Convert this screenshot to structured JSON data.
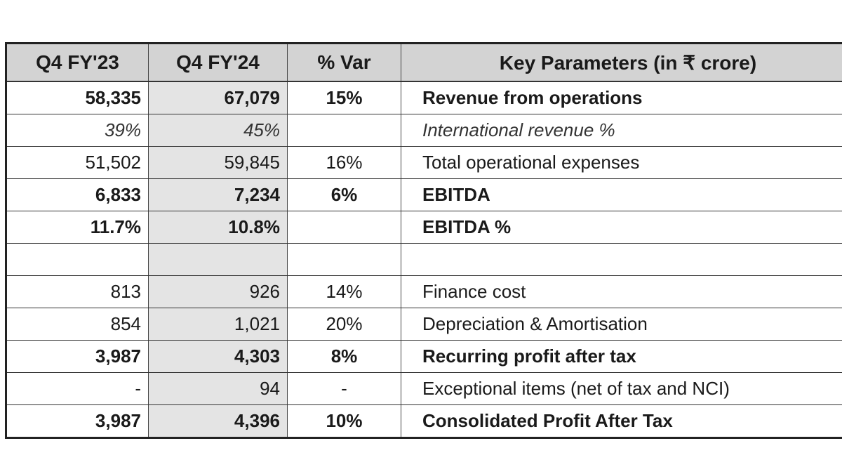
{
  "headers": [
    "Q4 FY'23",
    "Q4 FY'24",
    "% Var",
    "Key Parameters (in ₹ crore)"
  ],
  "rows": [
    {
      "q23": "58,335",
      "q24": "67,079",
      "var": "15%",
      "param": "Revenue from operations",
      "style": "bold"
    },
    {
      "q23": "39%",
      "q24": "45%",
      "var": "",
      "param": "International revenue %",
      "style": "italic"
    },
    {
      "q23": "51,502",
      "q24": "59,845",
      "var": "16%",
      "param": "Total operational expenses",
      "style": "normal"
    },
    {
      "q23": "6,833",
      "q24": "7,234",
      "var": "6%",
      "param": "EBITDA",
      "style": "bold"
    },
    {
      "q23": "11.7%",
      "q24": "10.8%",
      "var": "",
      "param": "EBITDA %",
      "style": "bold"
    },
    {
      "q23": "",
      "q24": "",
      "var": "",
      "param": "",
      "style": "normal"
    },
    {
      "q23": "813",
      "q24": "926",
      "var": "14%",
      "param": "Finance cost",
      "style": "normal"
    },
    {
      "q23": "854",
      "q24": "1,021",
      "var": "20%",
      "param": "Depreciation & Amortisation",
      "style": "normal"
    },
    {
      "q23": "3,987",
      "q24": "4,303",
      "var": "8%",
      "param": "Recurring profit after tax",
      "style": "bold"
    },
    {
      "q23": "-",
      "q24": "94",
      "var": "-",
      "param": "Exceptional items (net of tax and NCI)",
      "style": "normal"
    },
    {
      "q23": "3,987",
      "q24": "4,396",
      "var": "10%",
      "param": "Consolidated Profit After Tax",
      "style": "bold"
    }
  ],
  "colors": {
    "header_bg": "#d3d3d3",
    "fy24_col_bg": "#e4e4e4",
    "border": "#222222"
  }
}
